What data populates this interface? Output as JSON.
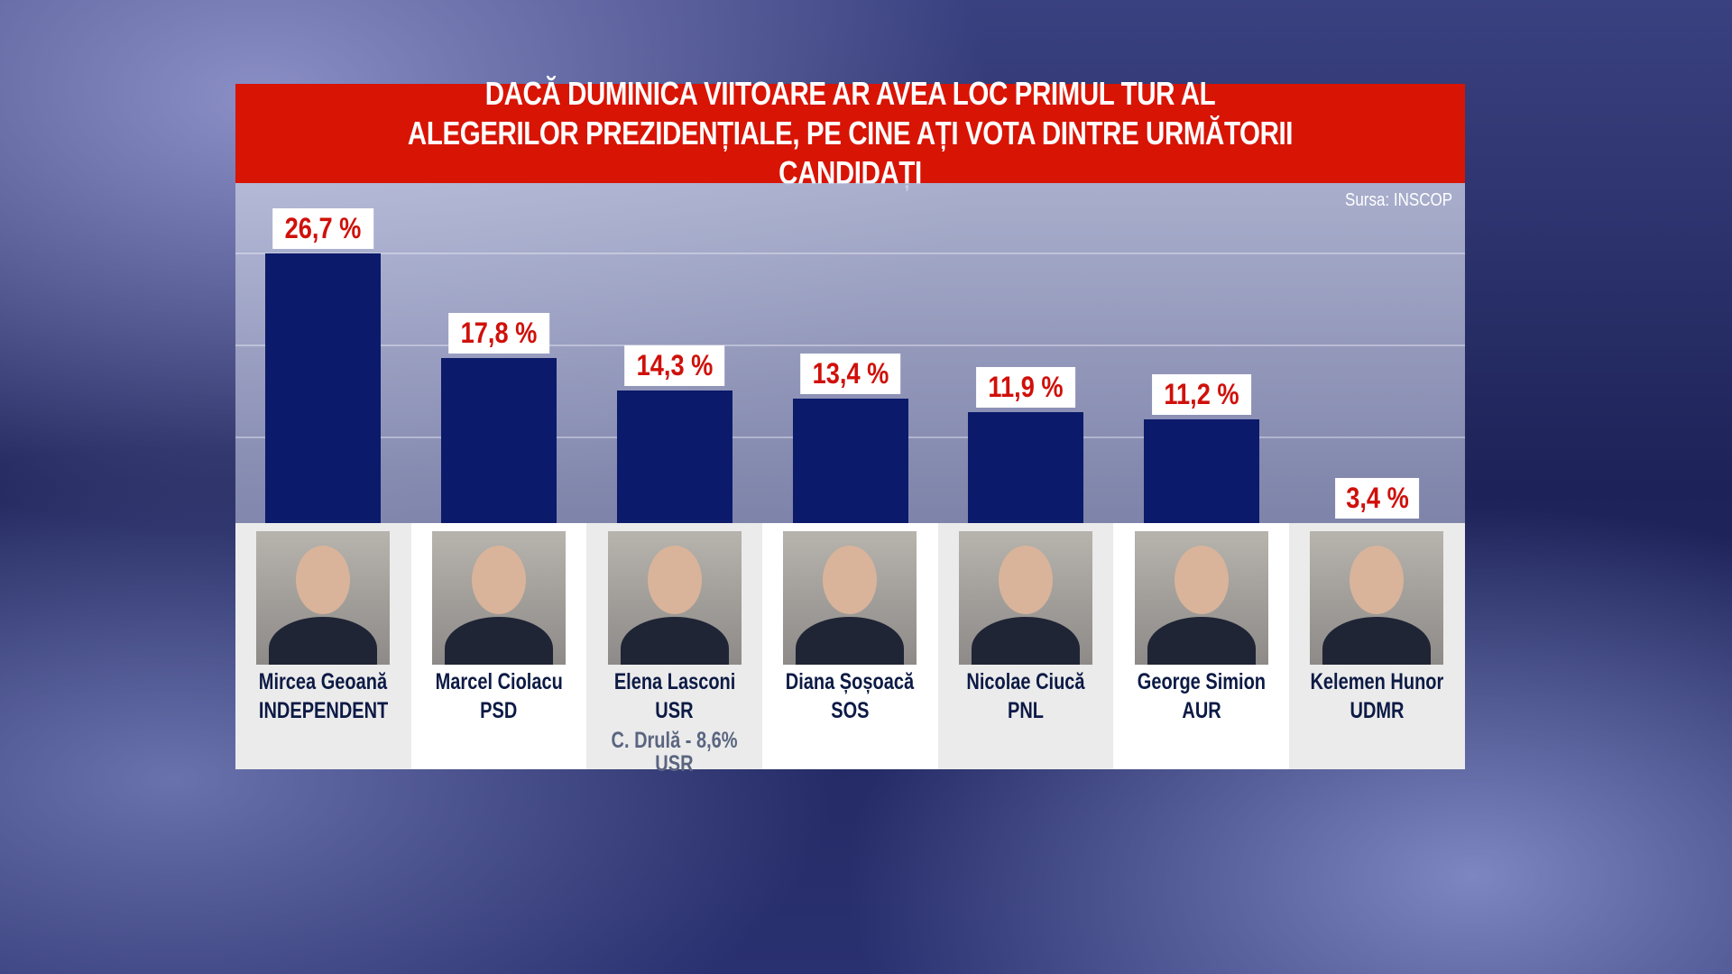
{
  "chart_data": {
    "type": "bar",
    "title": [
      "DACĂ DUMINICA VIITOARE AR AVEA LOC PRIMUL TUR AL",
      "ALEGERILOR PREZIDENȚIALE, PE CINE AȚI VOTA DINTRE URMĂTORII CANDIDAȚI"
    ],
    "source": "Sursa: INSCOP",
    "categories": [
      "Mircea Geoană",
      "Marcel Ciolacu",
      "Elena Lasconi",
      "Diana Șoșoacă",
      "Nicolae Ciucă",
      "George Simion",
      "Kelemen Hunor"
    ],
    "parties": [
      "INDEPENDENT",
      "PSD",
      "USR",
      "SOS",
      "PNL",
      "AUR",
      "UDMR"
    ],
    "values": [
      26.7,
      17.8,
      14.3,
      13.4,
      11.9,
      11.2,
      3.4
    ],
    "value_labels": [
      "26,7 %",
      "17,8 %",
      "14,3 %",
      "13,4 %",
      "11,9 %",
      "11,2 %",
      "3,4 %"
    ],
    "extra_note": {
      "line1": "C. Drulă - 8,6%",
      "line2": "USR"
    },
    "bar_color": "#0c1a6b",
    "label_color": "#d0100a",
    "header_color": "#d81405",
    "grid": true
  }
}
